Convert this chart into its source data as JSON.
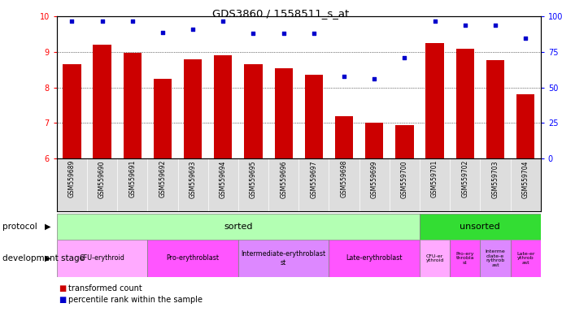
{
  "title": "GDS3860 / 1558511_s_at",
  "samples": [
    "GSM559689",
    "GSM559690",
    "GSM559691",
    "GSM559692",
    "GSM559693",
    "GSM559694",
    "GSM559695",
    "GSM559696",
    "GSM559697",
    "GSM559698",
    "GSM559699",
    "GSM559700",
    "GSM559701",
    "GSM559702",
    "GSM559703",
    "GSM559704"
  ],
  "bar_values": [
    8.65,
    9.2,
    8.98,
    8.25,
    8.8,
    8.9,
    8.65,
    8.55,
    8.35,
    7.2,
    7.0,
    6.93,
    9.25,
    9.1,
    8.78,
    7.8
  ],
  "dot_values": [
    97,
    97,
    97,
    89,
    91,
    97,
    88,
    88,
    88,
    58,
    56,
    71,
    97,
    94,
    94,
    85
  ],
  "bar_color": "#cc0000",
  "dot_color": "#0000cc",
  "ylim_left": [
    6,
    10
  ],
  "ylim_right": [
    0,
    100
  ],
  "yticks_left": [
    6,
    7,
    8,
    9,
    10
  ],
  "yticks_right": [
    0,
    25,
    50,
    75,
    100
  ],
  "protocol_sorted_count": 12,
  "protocol_unsorted_count": 4,
  "protocol_sorted_label": "sorted",
  "protocol_unsorted_label": "unsorted",
  "protocol_sorted_color": "#b3ffb3",
  "protocol_unsorted_color": "#33dd33",
  "dev_stage_colors": [
    "#ffaaff",
    "#ff55ff",
    "#dd88ff",
    "#ff55ff",
    "#ffaaff",
    "#ff55ff",
    "#dd88ff",
    "#ff55ff"
  ],
  "dev_stage_labels_sorted": [
    "CFU-erythroid",
    "Pro-erythroblast",
    "Intermediate-erythroblast\nst",
    "Late-erythroblast"
  ],
  "dev_stage_counts_sorted": [
    3,
    3,
    3,
    3
  ],
  "dev_stage_labels_unsorted": [
    "CFU-er\nythroid",
    "Pro-ery\nthrobla\nst",
    "Interme\ndiate-e\nrythrob\nast",
    "Late-er\nythrob\nast"
  ],
  "legend_bar_label": "transformed count",
  "legend_dot_label": "percentile rank within the sample",
  "tick_label_bg": "#dddddd",
  "chart_bg": "#ffffff"
}
